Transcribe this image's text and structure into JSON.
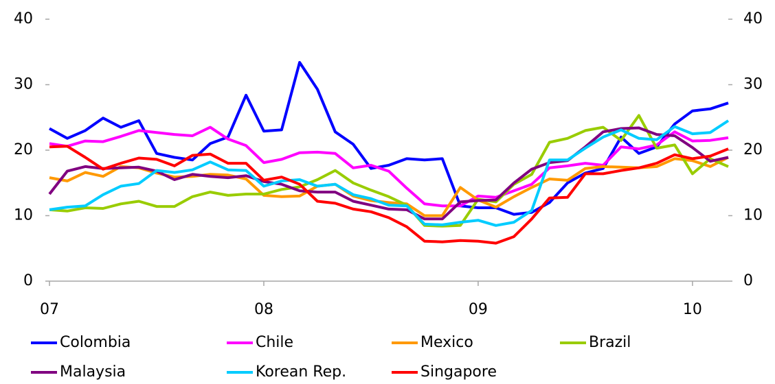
{
  "chart_data": {
    "type": "line",
    "x": [
      7,
      7.083,
      7.167,
      7.25,
      7.333,
      7.417,
      7.5,
      7.583,
      7.667,
      7.75,
      7.833,
      7.917,
      8,
      8.083,
      8.167,
      8.25,
      8.333,
      8.417,
      8.5,
      8.583,
      8.667,
      8.75,
      8.833,
      8.917,
      9,
      9.083,
      9.167,
      9.25,
      9.333,
      9.417,
      9.5,
      9.583,
      9.667,
      9.75,
      9.833,
      9.917,
      10,
      10.083,
      10.167
    ],
    "xlim": [
      7,
      10.167
    ],
    "xticks": [
      {
        "value": 7,
        "label": "07"
      },
      {
        "value": 8,
        "label": "08"
      },
      {
        "value": 9,
        "label": "09"
      },
      {
        "value": 10,
        "label": "10"
      }
    ],
    "ylim": [
      0,
      40
    ],
    "yticks": [
      0,
      10,
      20,
      30,
      40
    ],
    "y2lim": [
      0,
      40
    ],
    "y2ticks": [
      0,
      10,
      20,
      30,
      40
    ],
    "grid": false,
    "series": [
      {
        "name": "Colombia",
        "color": "#0000ff",
        "values": [
          23.3,
          21.8,
          23,
          24.9,
          23.5,
          24.5,
          19.5,
          18.9,
          18.5,
          21,
          22,
          28.4,
          22.9,
          23.1,
          33.4,
          29.3,
          22.8,
          20.9,
          17.2,
          17.7,
          18.7,
          18.5,
          18.7,
          11.5,
          11.2,
          11.2,
          10.2,
          10.5,
          12,
          15,
          16.5,
          17.2,
          22,
          19.5,
          20.5,
          24,
          26,
          26.3,
          27.2
        ]
      },
      {
        "name": "Chile",
        "color": "#ff00ff",
        "values": [
          21,
          20.6,
          21.4,
          21.3,
          22.1,
          23,
          22.7,
          22.4,
          22.2,
          23.5,
          21.7,
          20.7,
          18.1,
          18.6,
          19.6,
          19.7,
          19.5,
          17.3,
          17.7,
          16.8,
          14.2,
          11.8,
          11.5,
          11.5,
          13,
          12.8,
          13.8,
          14.8,
          17.3,
          17.6,
          18,
          17.7,
          20.5,
          20.2,
          20.8,
          22.8,
          21.4,
          21.5,
          21.9
        ]
      },
      {
        "name": "Mexico",
        "color": "#ff9900",
        "values": [
          15.8,
          15.3,
          16.6,
          16,
          17.5,
          17.3,
          16.5,
          15.9,
          16,
          16.3,
          16.2,
          15.6,
          13.1,
          12.9,
          13,
          14.5,
          14.8,
          13,
          12.3,
          12,
          11.8,
          10,
          10,
          14.3,
          12.4,
          11.3,
          12.9,
          14.3,
          15.6,
          15.4,
          17.2,
          17.5,
          17.4,
          17.3,
          17.5,
          18.7,
          18.4,
          17.5,
          18.9
        ]
      },
      {
        "name": "Brazil",
        "color": "#99cc00",
        "values": [
          10.9,
          10.7,
          11.2,
          11.1,
          11.8,
          12.2,
          11.4,
          11.4,
          12.9,
          13.6,
          13.1,
          13.3,
          13.3,
          14,
          14.4,
          15.5,
          16.9,
          15,
          13.9,
          12.9,
          11.6,
          8.5,
          8.4,
          8.5,
          12.5,
          12.1,
          14.8,
          16.3,
          21.2,
          21.8,
          23,
          23.5,
          21.5,
          25.3,
          20.3,
          20.8,
          16.4,
          18.7,
          17.5
        ]
      },
      {
        "name": "Malaysia",
        "color": "#800080",
        "values": [
          13.3,
          16.8,
          17.5,
          17.2,
          17.3,
          17.4,
          16.8,
          15.5,
          16.3,
          16,
          15.8,
          16.1,
          15.2,
          14.8,
          13.8,
          13.6,
          13.6,
          12.2,
          11.6,
          11,
          10.9,
          9.5,
          9.5,
          12.1,
          12.3,
          12.4,
          15,
          17.1,
          18.1,
          18.4,
          20.5,
          22.8,
          23.3,
          23.4,
          22.4,
          22.2,
          20.4,
          18.3,
          18.9
        ]
      },
      {
        "name": "Korean Rep.",
        "color": "#00ccff",
        "values": [
          10.9,
          11.3,
          11.5,
          13.2,
          14.5,
          14.9,
          16.9,
          16.6,
          17,
          18.2,
          17,
          16.9,
          14.5,
          15.3,
          15.5,
          14.5,
          14.8,
          13.2,
          12.6,
          11.6,
          11.5,
          8.7,
          8.6,
          9,
          9.3,
          8.5,
          9,
          10.8,
          18.5,
          18.5,
          20.3,
          22,
          23.1,
          21.8,
          21.6,
          23.6,
          22.5,
          22.7,
          24.5
        ]
      },
      {
        "name": "Singapore",
        "color": "#ff0000",
        "values": [
          20.5,
          20.6,
          18.9,
          17.1,
          18,
          18.8,
          18.6,
          17.6,
          19.2,
          19.4,
          18,
          18,
          15.4,
          15.9,
          14.8,
          12.2,
          11.9,
          11,
          10.6,
          9.7,
          8.3,
          6.1,
          6,
          6.2,
          6.1,
          5.8,
          6.8,
          9.5,
          12.7,
          12.8,
          16.4,
          16.4,
          16.9,
          17.3,
          18,
          19.3,
          18.7,
          19.1,
          20.2
        ]
      }
    ]
  }
}
